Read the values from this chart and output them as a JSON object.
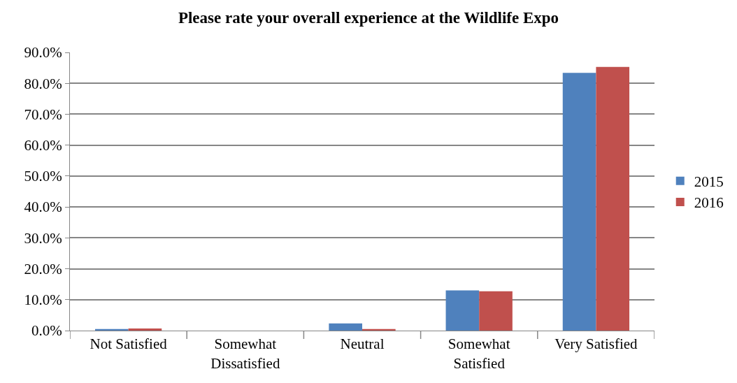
{
  "chart_data": {
    "type": "bar",
    "title": "Please rate your overall experience at the Wildlife Expo",
    "categories": [
      "Not Satisfied",
      "Somewhat Dissatisfied",
      "Neutral",
      "Somewhat Satisfied",
      "Very Satisfied"
    ],
    "series": [
      {
        "name": "2015",
        "color": "#4f81bd",
        "values": [
          0.5,
          null,
          2.3,
          13.0,
          83.4
        ]
      },
      {
        "name": "2016",
        "color": "#c0504d",
        "values": [
          0.7,
          0.0,
          0.5,
          12.7,
          85.3
        ]
      }
    ],
    "ylim": [
      0,
      90
    ],
    "yticks": [
      {
        "value": 0,
        "label": "0.0%"
      },
      {
        "value": 10,
        "label": "10.0%"
      },
      {
        "value": 20,
        "label": "20.0%"
      },
      {
        "value": 30,
        "label": "30.0%"
      },
      {
        "value": 40,
        "label": "40.0%"
      },
      {
        "value": 50,
        "label": "50.0%"
      },
      {
        "value": 60,
        "label": "60.0%"
      },
      {
        "value": 70,
        "label": "70.0%"
      },
      {
        "value": 80,
        "label": "80.0%"
      },
      {
        "value": 90,
        "label": "90.0%"
      }
    ],
    "grid": "y",
    "legend": "right"
  }
}
